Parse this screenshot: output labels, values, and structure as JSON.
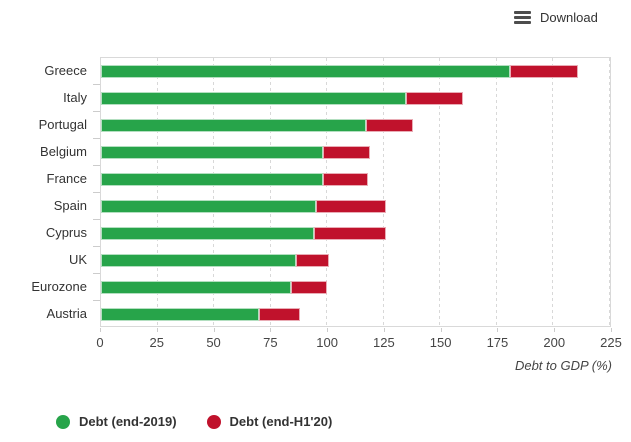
{
  "toolbar": {
    "download_label": "Download"
  },
  "colors": {
    "grid": "#d8d8d8",
    "axis": "#cccccc",
    "text": "#333333"
  },
  "chart_data": {
    "type": "bar",
    "orientation": "horizontal",
    "stacked": true,
    "title": "",
    "xlabel": "Debt to GDP (%)",
    "xlim": [
      0,
      225
    ],
    "xticks": [
      0,
      25,
      50,
      75,
      100,
      125,
      150,
      175,
      200,
      225
    ],
    "grid": "vertical-dashed",
    "legend_position": "bottom-left",
    "categories": [
      "Greece",
      "Italy",
      "Portugal",
      "Belgium",
      "France",
      "Spain",
      "Cyprus",
      "UK",
      "Eurozone",
      "Austria"
    ],
    "series": [
      {
        "name": "Debt (end-2019)",
        "color": "#27a44a",
        "values": [
          181,
          135,
          117,
          98,
          98,
          95,
          94,
          86,
          84,
          70
        ]
      },
      {
        "name": "Debt (end-H1'20)",
        "color": "#c0122c",
        "values": [
          211,
          160,
          138,
          119,
          118,
          126,
          126,
          101,
          100,
          88
        ]
      }
    ]
  }
}
